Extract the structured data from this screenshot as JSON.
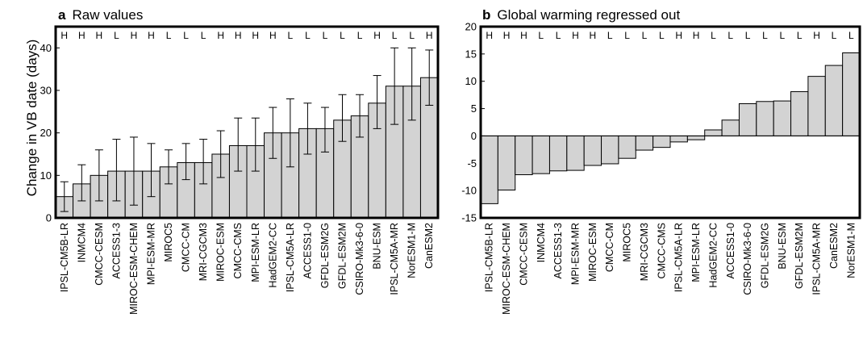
{
  "chart_data": [
    {
      "type": "bar",
      "panel_letter": "a",
      "title": "Raw values",
      "ylabel": "Change in VB date (days)",
      "ylim": [
        0,
        45
      ],
      "yticks": [
        0,
        10,
        20,
        30,
        40
      ],
      "grid": false,
      "error_bars": true,
      "bar_color": "#d3d3d3",
      "categories": [
        "IPSL-CM5B-LR",
        "INMCM4",
        "CMCC-CESM",
        "ACCESS1-3",
        "MIROC-ESM-CHEM",
        "MPI-ESM-MR",
        "MIROC5",
        "CMCC-CM",
        "MRI-CGCM3",
        "MIROC-ESM",
        "CMCC-CMS",
        "MPI-ESM-LR",
        "HadGEM2-CC",
        "IPSL-CM5A-LR",
        "ACCESS1-0",
        "GFDL-ESM2G",
        "GFDL-ESM2M",
        "CSIRO-Mk3-6-0",
        "BNU-ESM",
        "IPSL-CM5A-MR",
        "NorESM1-M",
        "CanESM2"
      ],
      "values": [
        5,
        8,
        10,
        11,
        11,
        11,
        12,
        13,
        13,
        15,
        17,
        17,
        20,
        20,
        21,
        21,
        23,
        24,
        27,
        31,
        31,
        33
      ],
      "err_low": [
        1.5,
        4,
        4,
        4,
        3,
        5,
        8,
        9,
        8,
        9.5,
        11,
        11,
        14,
        12,
        15,
        15.5,
        18,
        19,
        21,
        22,
        23,
        26.5
      ],
      "err_high": [
        8.5,
        12.5,
        16,
        18.5,
        19,
        17.5,
        16,
        17.5,
        18.5,
        20.5,
        23.5,
        23.5,
        26,
        28,
        27,
        26,
        29,
        29,
        33.5,
        40,
        40,
        39.5
      ],
      "top_labels": [
        "H",
        "H",
        "H",
        "L",
        "H",
        "H",
        "L",
        "L",
        "L",
        "H",
        "H",
        "H",
        "H",
        "L",
        "L",
        "L",
        "L",
        "L",
        "H",
        "L",
        "L",
        "H"
      ]
    },
    {
      "type": "bar",
      "panel_letter": "b",
      "title": "Global warming regressed out",
      "ylim": [
        -15,
        20
      ],
      "yticks": [
        -15,
        -10,
        -5,
        0,
        5,
        10,
        15,
        20
      ],
      "grid": false,
      "bar_color": "#d3d3d3",
      "categories": [
        "IPSL-CM5B-LR",
        "MIROC-ESM-CHEM",
        "CMCC-CESM",
        "INMCM4",
        "ACCESS1-3",
        "MPI-ESM-MR",
        "MIROC-ESM",
        "CMCC-CM",
        "MIROC5",
        "MRI-CGCM3",
        "CMCC-CMS",
        "IPSL-CM5A-LR",
        "MPI-ESM-LR",
        "HadGEM2-CC",
        "ACCESS1-0",
        "CSIRO-Mk3-6-0",
        "GFDL-ESM2G",
        "BNU-ESM",
        "GFDL-ESM2M",
        "IPSL-CM5A-MR",
        "CanESM2",
        "NorESM1-M"
      ],
      "values": [
        -12.4,
        -9.9,
        -7.1,
        -6.9,
        -6.4,
        -6.3,
        -5.4,
        -5.1,
        -4.1,
        -2.6,
        -2.1,
        -1.1,
        -0.7,
        1.1,
        2.9,
        5.9,
        6.3,
        6.4,
        8.1,
        10.9,
        12.9,
        15.2
      ],
      "top_labels": [
        "H",
        "H",
        "H",
        "L",
        "L",
        "H",
        "H",
        "L",
        "L",
        "L",
        "L",
        "H",
        "H",
        "L",
        "L",
        "L",
        "L",
        "L",
        "L",
        "H",
        "L",
        "L"
      ]
    }
  ]
}
